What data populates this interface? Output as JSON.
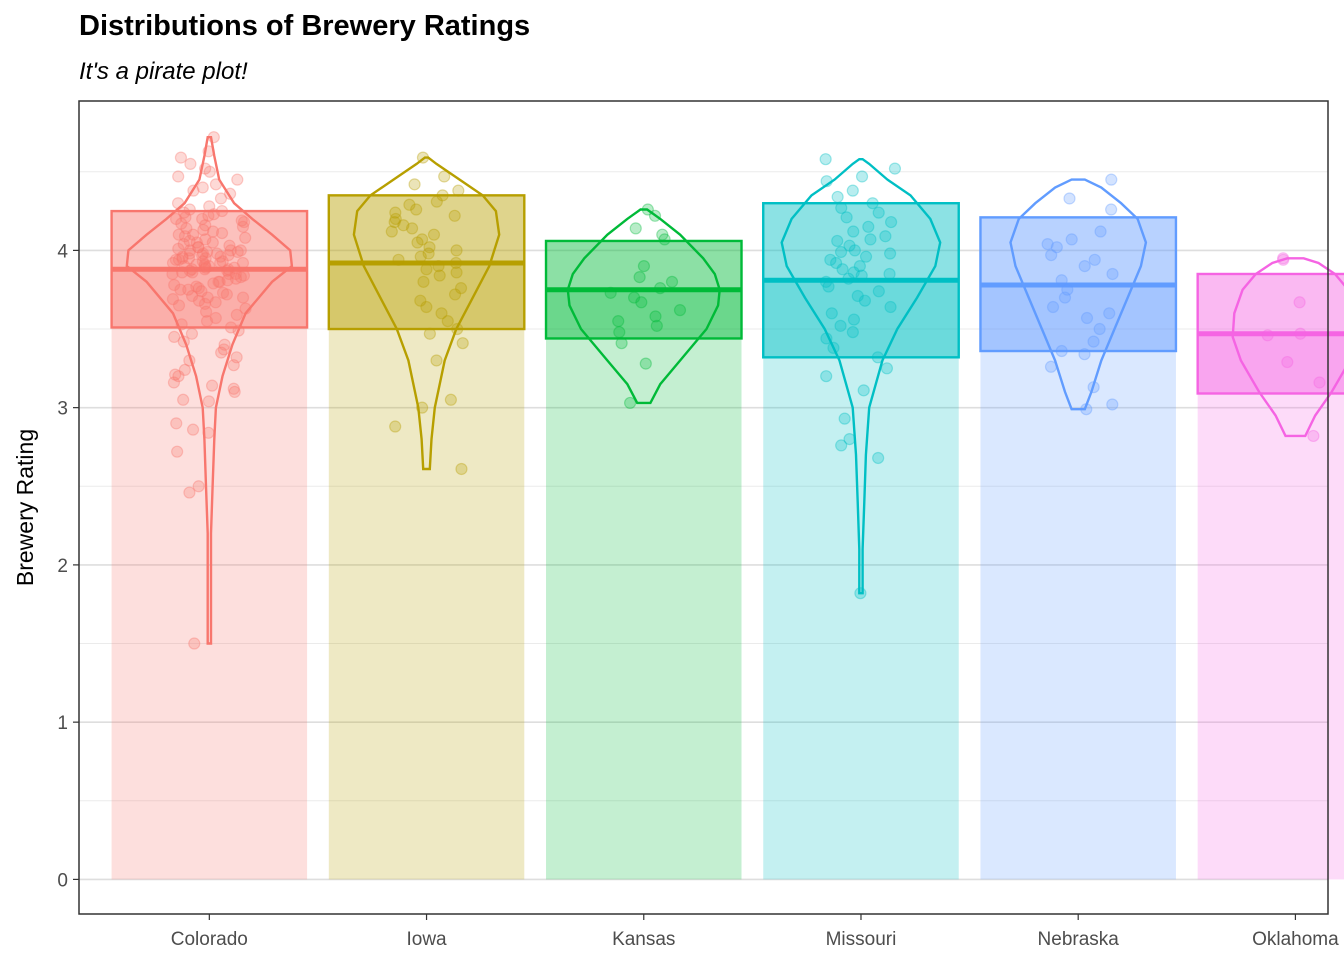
{
  "chart_data": {
    "type": "pirate",
    "title": "Distributions of Brewery Ratings",
    "subtitle": "It's a pirate plot!",
    "xlabel": "",
    "ylabel": "Brewery Rating",
    "ylim": [
      -0.22,
      4.95
    ],
    "yticks": [
      0,
      1,
      2,
      3,
      4
    ],
    "grid": true,
    "categories": [
      "Colorado",
      "Iowa",
      "Kansas",
      "Missouri",
      "Nebraska",
      "Oklahoma"
    ],
    "colors": [
      "#F8766D",
      "#B79F00",
      "#00BA38",
      "#00BFC4",
      "#619CFF",
      "#F564E3"
    ],
    "groups": [
      {
        "name": "Colorado",
        "mean": 3.88,
        "ci_low": 3.51,
        "ci_high": 4.25,
        "min": 1.5,
        "max": 4.72,
        "density": [
          [
            1.5,
            0.01
          ],
          [
            2.2,
            0.01
          ],
          [
            2.5,
            0.02
          ],
          [
            2.8,
            0.03
          ],
          [
            3.0,
            0.04
          ],
          [
            3.2,
            0.08
          ],
          [
            3.4,
            0.14
          ],
          [
            3.6,
            0.22
          ],
          [
            3.8,
            0.38
          ],
          [
            3.9,
            0.5
          ],
          [
            4.0,
            0.49
          ],
          [
            4.1,
            0.38
          ],
          [
            4.2,
            0.26
          ],
          [
            4.3,
            0.15
          ],
          [
            4.45,
            0.06
          ],
          [
            4.6,
            0.03
          ],
          [
            4.72,
            0.01
          ]
        ]
      },
      {
        "name": "Iowa",
        "mean": 3.92,
        "ci_low": 3.5,
        "ci_high": 4.35,
        "min": 2.61,
        "max": 4.59,
        "density": [
          [
            2.61,
            0.02
          ],
          [
            2.8,
            0.03
          ],
          [
            3.0,
            0.05
          ],
          [
            3.3,
            0.11
          ],
          [
            3.5,
            0.18
          ],
          [
            3.7,
            0.28
          ],
          [
            3.9,
            0.38
          ],
          [
            4.1,
            0.44
          ],
          [
            4.25,
            0.42
          ],
          [
            4.35,
            0.34
          ],
          [
            4.45,
            0.2
          ],
          [
            4.55,
            0.06
          ],
          [
            4.59,
            0.01
          ]
        ]
      },
      {
        "name": "Kansas",
        "mean": 3.75,
        "ci_low": 3.44,
        "ci_high": 4.06,
        "min": 3.03,
        "max": 4.26,
        "density": [
          [
            3.03,
            0.04
          ],
          [
            3.15,
            0.1
          ],
          [
            3.3,
            0.22
          ],
          [
            3.5,
            0.38
          ],
          [
            3.65,
            0.45
          ],
          [
            3.75,
            0.46
          ],
          [
            3.85,
            0.43
          ],
          [
            3.95,
            0.36
          ],
          [
            4.1,
            0.22
          ],
          [
            4.2,
            0.1
          ],
          [
            4.26,
            0.02
          ]
        ]
      },
      {
        "name": "Missouri",
        "mean": 3.81,
        "ci_low": 3.32,
        "ci_high": 4.3,
        "min": 1.82,
        "max": 4.58,
        "density": [
          [
            1.82,
            0.01
          ],
          [
            2.1,
            0.01
          ],
          [
            2.4,
            0.02
          ],
          [
            2.7,
            0.03
          ],
          [
            3.0,
            0.05
          ],
          [
            3.3,
            0.13
          ],
          [
            3.5,
            0.22
          ],
          [
            3.7,
            0.34
          ],
          [
            3.9,
            0.45
          ],
          [
            4.05,
            0.48
          ],
          [
            4.2,
            0.42
          ],
          [
            4.35,
            0.3
          ],
          [
            4.45,
            0.16
          ],
          [
            4.55,
            0.05
          ],
          [
            4.58,
            0.01
          ]
        ]
      },
      {
        "name": "Nebraska",
        "mean": 3.78,
        "ci_low": 3.36,
        "ci_high": 4.21,
        "min": 2.99,
        "max": 4.45,
        "density": [
          [
            2.99,
            0.04
          ],
          [
            3.1,
            0.08
          ],
          [
            3.3,
            0.14
          ],
          [
            3.5,
            0.22
          ],
          [
            3.7,
            0.3
          ],
          [
            3.9,
            0.38
          ],
          [
            4.05,
            0.41
          ],
          [
            4.2,
            0.36
          ],
          [
            4.3,
            0.26
          ],
          [
            4.4,
            0.14
          ],
          [
            4.45,
            0.04
          ]
        ]
      },
      {
        "name": "Oklahoma",
        "mean": 3.47,
        "ci_low": 3.09,
        "ci_high": 3.85,
        "min": 2.82,
        "max": 3.95,
        "density": [
          [
            2.82,
            0.06
          ],
          [
            2.95,
            0.12
          ],
          [
            3.1,
            0.22
          ],
          [
            3.3,
            0.33
          ],
          [
            3.45,
            0.38
          ],
          [
            3.6,
            0.37
          ],
          [
            3.75,
            0.32
          ],
          [
            3.85,
            0.24
          ],
          [
            3.92,
            0.14
          ],
          [
            3.95,
            0.05
          ]
        ]
      }
    ],
    "points": {
      "Colorado": [
        4.63,
        4.72,
        4.59,
        4.55,
        4.52,
        4.5,
        4.47,
        4.45,
        4.42,
        4.4,
        4.38,
        4.36,
        4.33,
        4.3,
        4.28,
        4.26,
        4.25,
        4.24,
        4.23,
        4.22,
        4.21,
        4.2,
        4.19,
        4.18,
        4.17,
        4.16,
        4.15,
        4.14,
        4.13,
        4.12,
        4.11,
        4.1,
        4.09,
        4.08,
        4.07,
        4.06,
        4.05,
        4.05,
        4.04,
        4.03,
        4.02,
        4.02,
        4.01,
        4.0,
        4.0,
        3.99,
        3.99,
        3.98,
        3.98,
        3.97,
        3.97,
        3.96,
        3.96,
        3.95,
        3.95,
        3.94,
        3.94,
        3.93,
        3.93,
        3.92,
        3.92,
        3.91,
        3.91,
        3.9,
        3.9,
        3.89,
        3.89,
        3.88,
        3.88,
        3.87,
        3.87,
        3.86,
        3.86,
        3.85,
        3.85,
        3.84,
        3.83,
        3.82,
        3.81,
        3.8,
        3.79,
        3.78,
        3.77,
        3.76,
        3.75,
        3.74,
        3.73,
        3.72,
        3.71,
        3.7,
        3.69,
        3.68,
        3.67,
        3.66,
        3.65,
        3.63,
        3.61,
        3.59,
        3.57,
        3.55,
        3.53,
        3.51,
        3.49,
        3.47,
        3.45,
        3.42,
        3.4,
        3.37,
        3.35,
        3.32,
        3.3,
        3.27,
        3.24,
        3.21,
        3.2,
        3.16,
        3.14,
        3.12,
        3.1,
        3.05,
        3.04,
        2.9,
        2.86,
        2.84,
        2.72,
        2.5,
        2.46,
        1.5,
        4.0,
        3.95,
        3.9,
        3.85,
        3.8,
        4.1,
        4.2,
        3.75,
        3.7,
        3.98,
        3.92,
        3.88
      ],
      "Iowa": [
        4.59,
        4.47,
        4.42,
        4.38,
        4.35,
        4.31,
        4.29,
        4.26,
        4.24,
        4.22,
        4.2,
        4.18,
        4.16,
        4.14,
        4.12,
        4.1,
        4.07,
        4.05,
        4.02,
        4.0,
        3.98,
        3.96,
        3.94,
        3.92,
        3.9,
        3.88,
        3.86,
        3.84,
        3.8,
        3.76,
        3.72,
        3.68,
        3.64,
        3.6,
        3.55,
        3.5,
        3.47,
        3.41,
        3.3,
        3.05,
        3.0,
        2.88,
        2.61
      ],
      "Kansas": [
        4.26,
        4.22,
        4.14,
        4.1,
        4.07,
        3.9,
        3.83,
        3.8,
        3.76,
        3.73,
        3.7,
        3.67,
        3.62,
        3.58,
        3.55,
        3.52,
        3.48,
        3.41,
        3.28,
        3.03
      ],
      "Missouri": [
        4.58,
        4.52,
        4.47,
        4.44,
        4.38,
        4.34,
        4.3,
        4.27,
        4.24,
        4.21,
        4.18,
        4.15,
        4.12,
        4.09,
        4.06,
        4.03,
        4.0,
        3.98,
        3.96,
        3.94,
        3.92,
        3.9,
        3.88,
        3.86,
        3.84,
        3.82,
        3.8,
        3.77,
        3.74,
        3.71,
        3.68,
        3.64,
        3.6,
        3.56,
        3.52,
        3.48,
        3.44,
        3.38,
        3.32,
        3.25,
        3.2,
        3.11,
        2.93,
        2.8,
        2.76,
        2.68,
        1.82,
        3.99,
        4.07,
        3.85
      ],
      "Nebraska": [
        4.45,
        4.33,
        4.26,
        4.12,
        4.07,
        4.04,
        4.02,
        3.97,
        3.94,
        3.9,
        3.85,
        3.81,
        3.75,
        3.7,
        3.64,
        3.6,
        3.57,
        3.5,
        3.42,
        3.36,
        3.34,
        3.26,
        3.13,
        3.02,
        2.99
      ],
      "Oklahoma": [
        3.95,
        3.94,
        3.67,
        3.47,
        3.46,
        3.29,
        3.16,
        2.82
      ]
    }
  }
}
